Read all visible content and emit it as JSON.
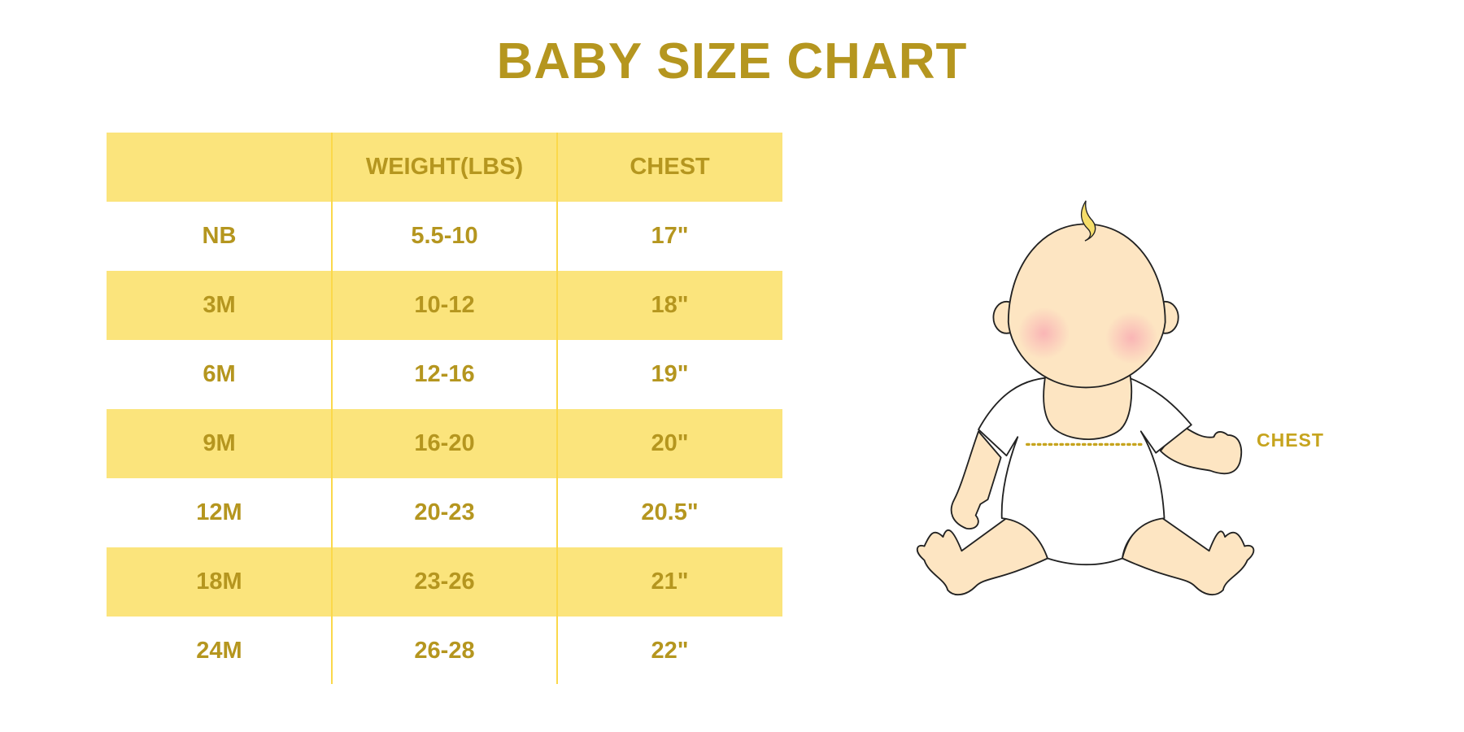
{
  "title": "BABY SIZE CHART",
  "colors": {
    "text": "#b5961f",
    "band": "#fbe47c",
    "divider": "#fbd84a",
    "skin": "#fde5c2",
    "cheek": "#f9b9b9",
    "hair": "#f6de6a"
  },
  "table": {
    "headers": [
      "",
      "WEIGHT(LBS)",
      "CHEST"
    ],
    "rows": [
      [
        "NB",
        "5.5-10",
        "17\""
      ],
      [
        "3M",
        "10-12",
        "18\""
      ],
      [
        "6M",
        "12-16",
        "19\""
      ],
      [
        "9M",
        "16-20",
        "20\""
      ],
      [
        "12M",
        "20-23",
        "20.5\""
      ],
      [
        "18M",
        "23-26",
        "21\""
      ],
      [
        "24M",
        "26-28",
        "22\""
      ]
    ]
  },
  "illustration": {
    "chest_label": "CHEST"
  }
}
